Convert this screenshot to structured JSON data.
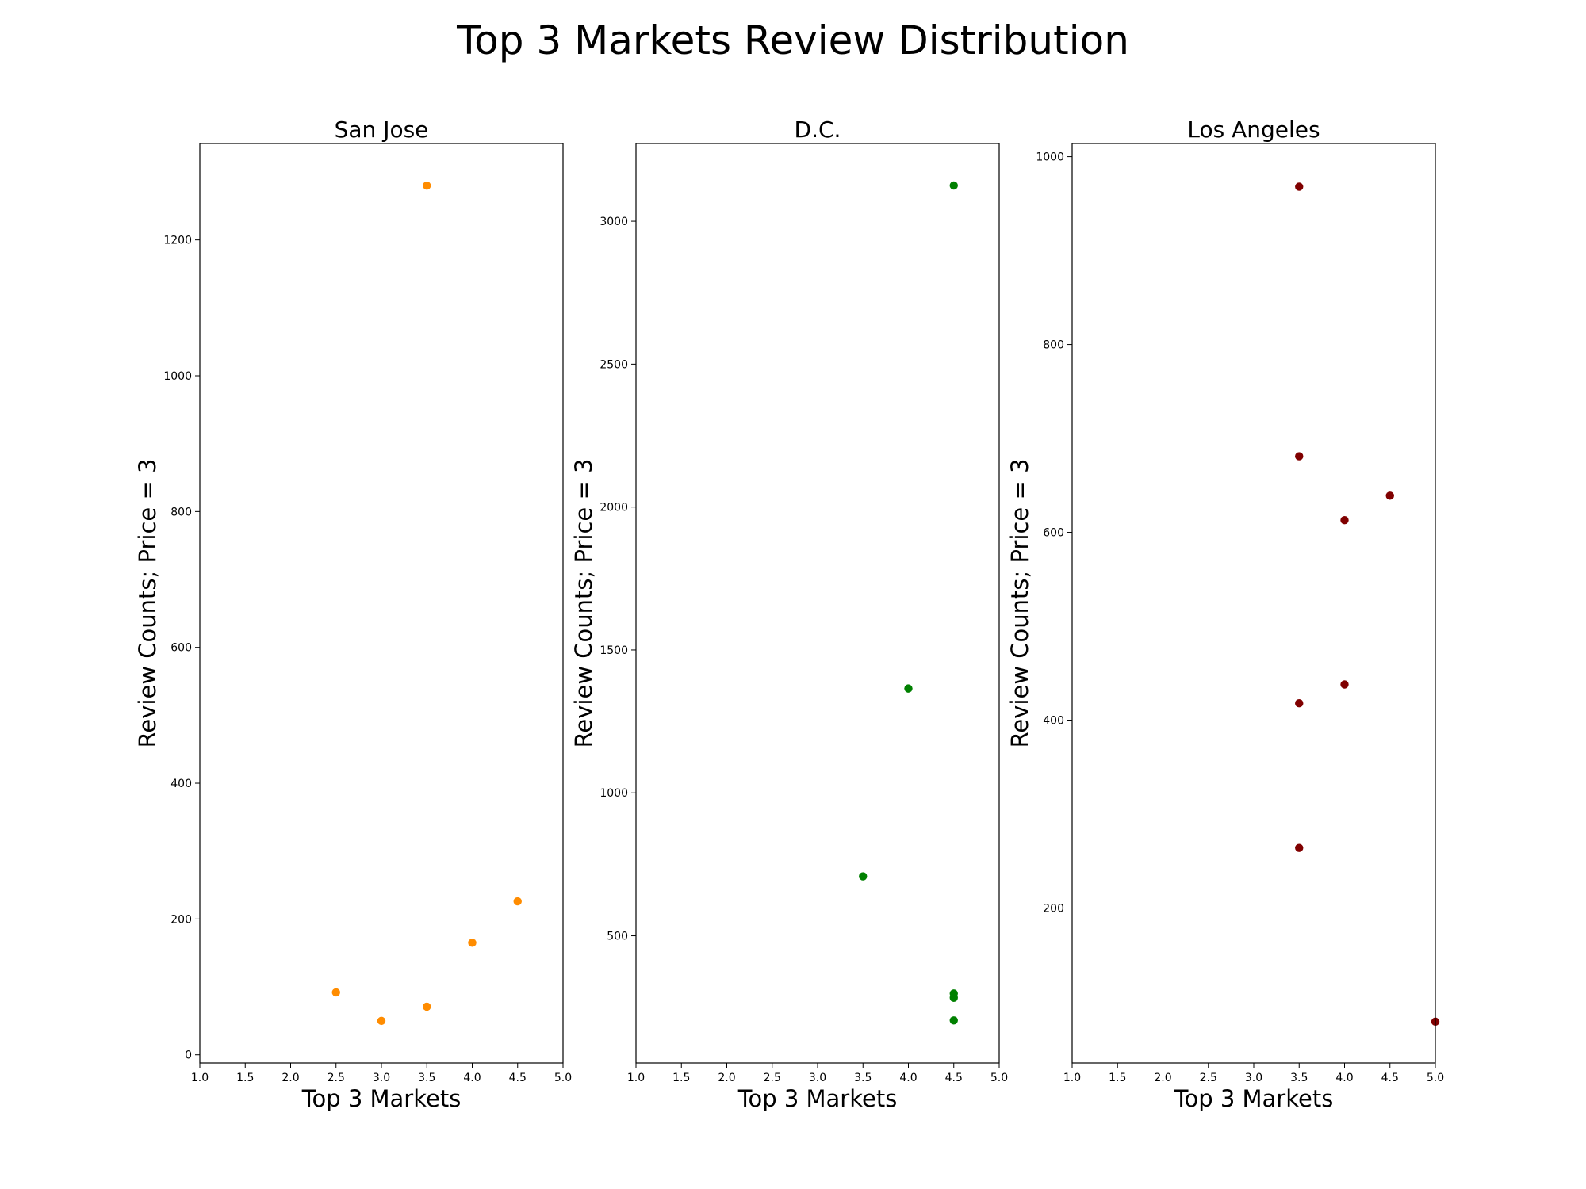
{
  "figure": {
    "title": "Top 3 Markets Review Distribution"
  },
  "chart_data": [
    {
      "type": "scatter",
      "title": "San Jose",
      "xlabel": "Top 3 Markets",
      "ylabel": "Review Counts; Price = 3",
      "color": "#ff8c00",
      "xlim": [
        1.0,
        5.0
      ],
      "ylim": [
        -12,
        1342
      ],
      "xticks": [
        1.0,
        1.5,
        2.0,
        2.5,
        3.0,
        3.5,
        4.0,
        4.5,
        5.0
      ],
      "yticks": [
        0,
        200,
        400,
        600,
        800,
        1000,
        1200
      ],
      "points": [
        {
          "x": 3.5,
          "y": 1280
        },
        {
          "x": 2.5,
          "y": 92
        },
        {
          "x": 3.0,
          "y": 50
        },
        {
          "x": 3.5,
          "y": 71
        },
        {
          "x": 4.0,
          "y": 165
        },
        {
          "x": 4.5,
          "y": 226
        }
      ],
      "grid": false
    },
    {
      "type": "scatter",
      "title": "D.C.",
      "xlabel": "Top 3 Markets",
      "ylabel": "Review Counts; Price = 3",
      "color": "#008000",
      "xlim": [
        1.0,
        5.0
      ],
      "ylim": [
        55,
        3272
      ],
      "xticks": [
        1.0,
        1.5,
        2.0,
        2.5,
        3.0,
        3.5,
        4.0,
        4.5,
        5.0
      ],
      "yticks": [
        500,
        1000,
        1500,
        2000,
        2500,
        3000
      ],
      "points": [
        {
          "x": 4.5,
          "y": 3125
        },
        {
          "x": 4.0,
          "y": 1365
        },
        {
          "x": 3.5,
          "y": 708
        },
        {
          "x": 4.5,
          "y": 298
        },
        {
          "x": 4.5,
          "y": 283
        },
        {
          "x": 4.5,
          "y": 204
        }
      ],
      "grid": false
    },
    {
      "type": "scatter",
      "title": "Los Angeles",
      "xlabel": "Top 3 Markets",
      "ylabel": "Review Counts; Price = 3",
      "color": "#800000",
      "xlim": [
        1.0,
        5.0
      ],
      "ylim": [
        35,
        1014
      ],
      "xticks": [
        1.0,
        1.5,
        2.0,
        2.5,
        3.0,
        3.5,
        4.0,
        4.5,
        5.0
      ],
      "yticks": [
        200,
        400,
        600,
        800,
        1000
      ],
      "points": [
        {
          "x": 3.5,
          "y": 968
        },
        {
          "x": 3.5,
          "y": 681
        },
        {
          "x": 4.5,
          "y": 639
        },
        {
          "x": 4.0,
          "y": 613
        },
        {
          "x": 4.0,
          "y": 438
        },
        {
          "x": 3.5,
          "y": 418
        },
        {
          "x": 3.5,
          "y": 264
        },
        {
          "x": 5.0,
          "y": 79
        }
      ],
      "grid": false
    }
  ]
}
